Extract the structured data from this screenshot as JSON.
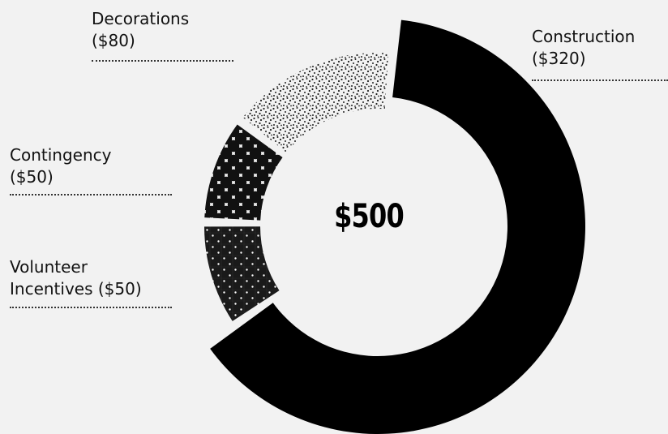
{
  "chart_data": {
    "type": "pie",
    "title": "",
    "center_label": "$500",
    "total": 500,
    "slices": [
      {
        "label_lines": [
          "Construction",
          "($320)"
        ],
        "value": 320,
        "color": "#000000",
        "pattern": "solid"
      },
      {
        "label_lines": [
          "Volunteer",
          "Incentives ($50)"
        ],
        "value": 50,
        "color": "#1a1a1a",
        "pattern": "white-dot-grid"
      },
      {
        "label_lines": [
          "Contingency",
          "($50)"
        ],
        "value": 50,
        "color": "#1a1a1a",
        "pattern": "large-circles"
      },
      {
        "label_lines": [
          "Decorations",
          "($80)"
        ],
        "value": 80,
        "color": "#f2f2f2",
        "pattern": "stipple"
      }
    ]
  }
}
